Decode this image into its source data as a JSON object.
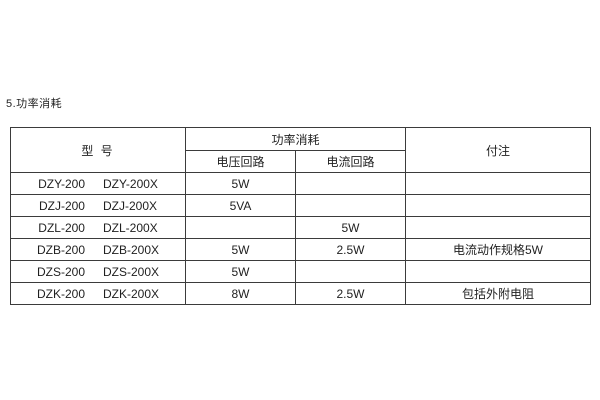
{
  "page": {
    "title": "5.功率消耗"
  },
  "table": {
    "headers": {
      "model": "型  号",
      "power_group": "功率消耗",
      "voltage_circuit": "电压回路",
      "current_circuit": "电流回路",
      "notes": "付注"
    },
    "rows": [
      {
        "model_a": "DZY-200",
        "model_b": "DZY-200X",
        "voltage": "5W",
        "current": "",
        "note": ""
      },
      {
        "model_a": "DZJ-200",
        "model_b": "DZJ-200X",
        "voltage": "5VA",
        "current": "",
        "note": ""
      },
      {
        "model_a": "DZL-200",
        "model_b": "DZL-200X",
        "voltage": "",
        "current": "5W",
        "note": ""
      },
      {
        "model_a": "DZB-200",
        "model_b": "DZB-200X",
        "voltage": "5W",
        "current": "2.5W",
        "note": "电流动作规格5W"
      },
      {
        "model_a": "DZS-200",
        "model_b": "DZS-200X",
        "voltage": "5W",
        "current": "",
        "note": ""
      },
      {
        "model_a": "DZK-200",
        "model_b": "DZK-200X",
        "voltage": "8W",
        "current": "2.5W",
        "note": "包括外附电阻"
      }
    ],
    "colors": {
      "border": "#3b3b3b",
      "text": "#1f1f1f",
      "background": "#ffffff"
    }
  }
}
